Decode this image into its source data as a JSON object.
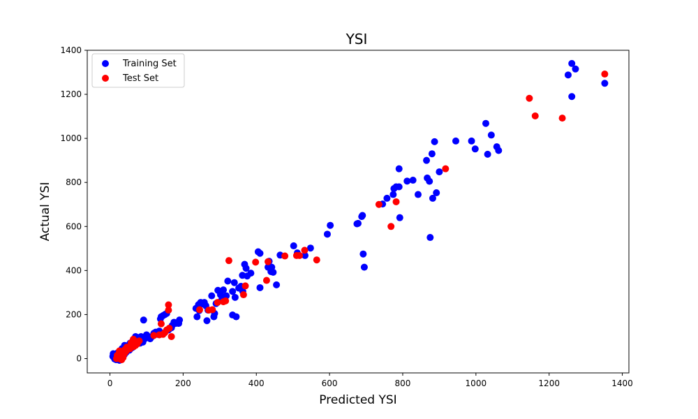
{
  "chart_data": {
    "type": "scatter",
    "title": "YSI",
    "xlabel": "Predicted YSI",
    "ylabel": "Actual YSI",
    "xlim": [
      -62,
      1418
    ],
    "ylim": [
      -65,
      1400
    ],
    "xticks": [
      0,
      200,
      400,
      600,
      800,
      1000,
      1200,
      1400
    ],
    "yticks": [
      0,
      200,
      400,
      600,
      800,
      1000,
      1200,
      1400
    ],
    "grid": false,
    "legend_position": "top-left",
    "series": [
      {
        "name": "Training Set",
        "color": "#0000ff",
        "points": [
          [
            1262,
            1340
          ],
          [
            1272,
            1315
          ],
          [
            1252,
            1288
          ],
          [
            1262,
            1190
          ],
          [
            1352,
            1250
          ],
          [
            1027,
            1068
          ],
          [
            1042,
            1015
          ],
          [
            1057,
            962
          ],
          [
            1062,
            945
          ],
          [
            1032,
            928
          ],
          [
            998,
            952
          ],
          [
            988,
            988
          ],
          [
            945,
            988
          ],
          [
            887,
            985
          ],
          [
            865,
            900
          ],
          [
            880,
            930
          ],
          [
            900,
            848
          ],
          [
            892,
            753
          ],
          [
            882,
            728
          ],
          [
            873,
            805
          ],
          [
            867,
            820
          ],
          [
            828,
            810
          ],
          [
            812,
            806
          ],
          [
            842,
            745
          ],
          [
            790,
            862
          ],
          [
            792,
            640
          ],
          [
            875,
            550
          ],
          [
            790,
            780
          ],
          [
            782,
            780
          ],
          [
            776,
            772
          ],
          [
            774,
            745
          ],
          [
            757,
            728
          ],
          [
            745,
            702
          ],
          [
            690,
            650
          ],
          [
            688,
            645
          ],
          [
            678,
            614
          ],
          [
            675,
            612
          ],
          [
            692,
            475
          ],
          [
            695,
            415
          ],
          [
            602,
            605
          ],
          [
            594,
            565
          ],
          [
            548,
            502
          ],
          [
            533,
            468
          ],
          [
            512,
            480
          ],
          [
            502,
            512
          ],
          [
            465,
            470
          ],
          [
            455,
            335
          ],
          [
            410,
            478
          ],
          [
            405,
            485
          ],
          [
            435,
            442
          ],
          [
            442,
            415
          ],
          [
            440,
            395
          ],
          [
            432,
            415
          ],
          [
            446,
            392
          ],
          [
            410,
            322
          ],
          [
            385,
            388
          ],
          [
            375,
            375
          ],
          [
            362,
            378
          ],
          [
            368,
            428
          ],
          [
            372,
            410
          ],
          [
            363,
            305
          ],
          [
            358,
            328
          ],
          [
            352,
            320
          ],
          [
            340,
            345
          ],
          [
            335,
            305
          ],
          [
            342,
            278
          ],
          [
            345,
            190
          ],
          [
            335,
            198
          ],
          [
            322,
            352
          ],
          [
            318,
            285
          ],
          [
            310,
            312
          ],
          [
            305,
            265
          ],
          [
            302,
            290
          ],
          [
            295,
            310
          ],
          [
            290,
            250
          ],
          [
            286,
            205
          ],
          [
            284,
            190
          ],
          [
            278,
            285
          ],
          [
            268,
            220
          ],
          [
            265,
            172
          ],
          [
            262,
            240
          ],
          [
            258,
            255
          ],
          [
            255,
            248
          ],
          [
            248,
            255
          ],
          [
            244,
            218
          ],
          [
            242,
            245
          ],
          [
            238,
            190
          ],
          [
            235,
            228
          ],
          [
            190,
            175
          ],
          [
            188,
            160
          ],
          [
            180,
            160
          ],
          [
            175,
            165
          ],
          [
            170,
            150
          ],
          [
            168,
            140
          ],
          [
            165,
            140
          ],
          [
            160,
            130
          ],
          [
            155,
            205
          ],
          [
            150,
            200
          ],
          [
            145,
            195
          ],
          [
            140,
            190
          ],
          [
            138,
            180
          ],
          [
            135,
            125
          ],
          [
            130,
            110
          ],
          [
            125,
            120
          ],
          [
            120,
            115
          ],
          [
            115,
            100
          ],
          [
            110,
            90
          ],
          [
            105,
            100
          ],
          [
            100,
            108
          ],
          [
            95,
            90
          ],
          [
            92,
            175
          ],
          [
            90,
            75
          ],
          [
            85,
            100
          ],
          [
            80,
            95
          ],
          [
            78,
            80
          ],
          [
            75,
            90
          ],
          [
            70,
            100
          ],
          [
            68,
            85
          ],
          [
            65,
            70
          ],
          [
            62,
            60
          ],
          [
            60,
            75
          ],
          [
            58,
            55
          ],
          [
            55,
            70
          ],
          [
            52,
            45
          ],
          [
            50,
            60
          ],
          [
            48,
            50
          ],
          [
            45,
            40
          ],
          [
            42,
            50
          ],
          [
            40,
            60
          ],
          [
            38,
            30
          ],
          [
            35,
            40
          ],
          [
            33,
            45
          ],
          [
            30,
            35
          ],
          [
            28,
            25
          ],
          [
            25,
            30
          ],
          [
            22,
            20
          ],
          [
            20,
            25
          ],
          [
            18,
            15
          ],
          [
            16,
            12
          ],
          [
            14,
            20
          ],
          [
            12,
            18
          ],
          [
            10,
            15
          ],
          [
            9,
            22
          ],
          [
            8,
            10
          ],
          [
            11,
            5
          ],
          [
            13,
            -2
          ],
          [
            15,
            8
          ],
          [
            17,
            -5
          ],
          [
            19,
            3
          ],
          [
            21,
            10
          ],
          [
            23,
            15
          ],
          [
            26,
            -8
          ],
          [
            29,
            20
          ],
          [
            31,
            5
          ],
          [
            34,
            12
          ],
          [
            36,
            25
          ],
          [
            39,
            18
          ],
          [
            41,
            35
          ],
          [
            44,
            28
          ],
          [
            46,
            55
          ],
          [
            49,
            42
          ],
          [
            53,
            38
          ],
          [
            56,
            65
          ],
          [
            59,
            48
          ],
          [
            63,
            52
          ],
          [
            66,
            80
          ],
          [
            69,
            62
          ],
          [
            72,
            72
          ],
          [
            76,
            68
          ],
          [
            79,
            85
          ],
          [
            82,
            70
          ],
          [
            86,
            78
          ],
          [
            88,
            88
          ]
        ]
      },
      {
        "name": "Test Set",
        "color": "#ff0000",
        "points": [
          [
            1352,
            1292
          ],
          [
            1146,
            1182
          ],
          [
            1162,
            1102
          ],
          [
            1236,
            1092
          ],
          [
            917,
            862
          ],
          [
            782,
            712
          ],
          [
            735,
            700
          ],
          [
            768,
            600
          ],
          [
            565,
            448
          ],
          [
            532,
            492
          ],
          [
            518,
            468
          ],
          [
            510,
            468
          ],
          [
            478,
            466
          ],
          [
            432,
            440
          ],
          [
            428,
            355
          ],
          [
            398,
            438
          ],
          [
            370,
            330
          ],
          [
            365,
            290
          ],
          [
            325,
            445
          ],
          [
            316,
            262
          ],
          [
            310,
            258
          ],
          [
            294,
            255
          ],
          [
            280,
            222
          ],
          [
            270,
            220
          ],
          [
            245,
            222
          ],
          [
            168,
            100
          ],
          [
            160,
            244
          ],
          [
            160,
            220
          ],
          [
            162,
            138
          ],
          [
            155,
            130
          ],
          [
            150,
            118
          ],
          [
            145,
            110
          ],
          [
            140,
            158
          ],
          [
            135,
            108
          ],
          [
            120,
            105
          ],
          [
            80,
            80
          ],
          [
            75,
            68
          ],
          [
            70,
            60
          ],
          [
            65,
            55
          ],
          [
            60,
            65
          ],
          [
            55,
            45
          ],
          [
            50,
            50
          ],
          [
            45,
            35
          ],
          [
            42,
            30
          ],
          [
            40,
            40
          ],
          [
            38,
            20
          ],
          [
            35,
            15
          ],
          [
            33,
            25
          ],
          [
            30,
            30
          ],
          [
            28,
            10
          ],
          [
            26,
            35
          ],
          [
            24,
            20
          ],
          [
            22,
            5
          ],
          [
            20,
            15
          ],
          [
            18,
            0
          ],
          [
            36,
            5
          ],
          [
            32,
            -5
          ],
          [
            28,
            -2
          ],
          [
            40,
            25
          ],
          [
            46,
            52
          ],
          [
            58,
            72
          ],
          [
            64,
            88
          ]
        ]
      }
    ]
  }
}
